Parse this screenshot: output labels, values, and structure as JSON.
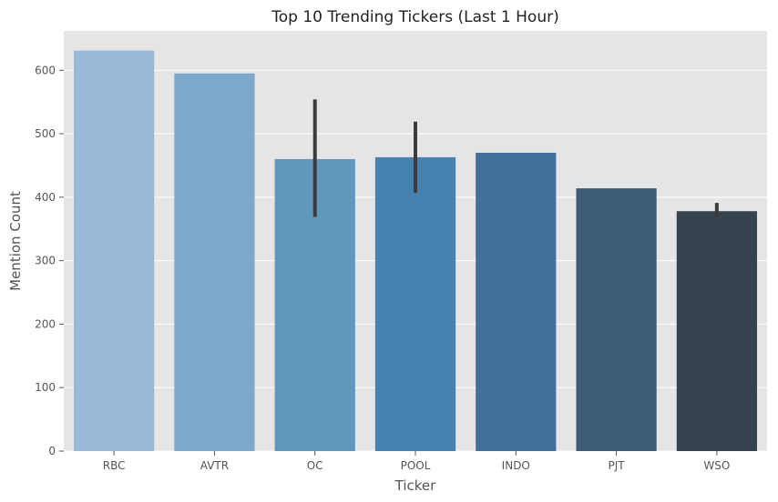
{
  "chart_data": {
    "type": "bar",
    "title": "Top 10 Trending Tickers (Last 1 Hour)",
    "xlabel": "Ticker",
    "ylabel": "Mention Count",
    "categories": [
      "RBC",
      "AVTR",
      "OC",
      "POOL",
      "INDO",
      "PJT",
      "WSO"
    ],
    "values": [
      631,
      595,
      460,
      463,
      470,
      414,
      378
    ],
    "error_bars": [
      null,
      null,
      [
        369,
        554
      ],
      [
        407,
        519
      ],
      null,
      null,
      [
        368,
        391
      ]
    ],
    "colors": [
      "#98b9d5",
      "#7ca8c9",
      "#6097bd",
      "#4682b0",
      "#43709a",
      "#3e5c76",
      "#37444f"
    ],
    "error_bar_color": "#3b3b3b",
    "ylim": [
      0,
      662
    ],
    "yticks": [
      0,
      100,
      200,
      300,
      400,
      500,
      600
    ],
    "grid": true,
    "background": "#e5e5e5",
    "grid_color": "#ffffff"
  }
}
